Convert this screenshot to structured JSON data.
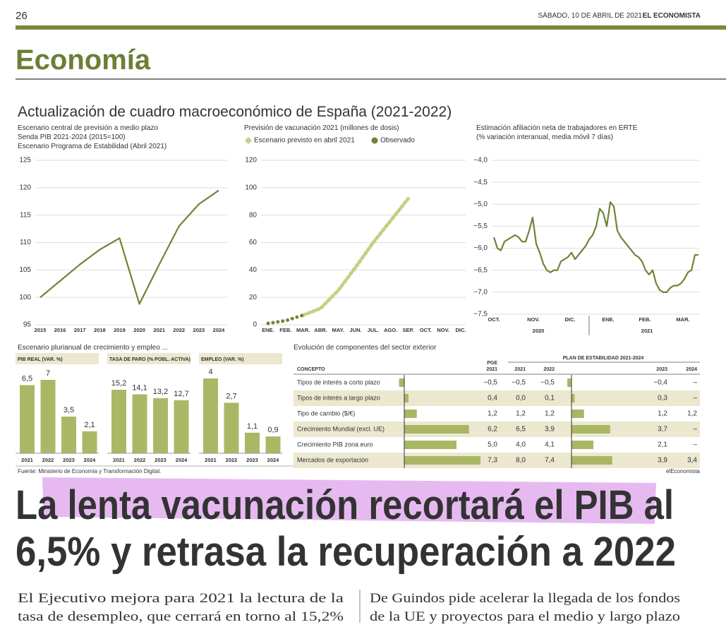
{
  "header": {
    "page": "26",
    "date": "SÁBADO, 10 DE ABRIL DE 2021",
    "paper": "EL ECONOMISTA",
    "section": "Economía"
  },
  "title": "Actualización de cuadro macroeconómico de España (2021-2022)",
  "chart_data": [
    {
      "type": "line",
      "title_lines": [
        "Escenario central de previsión a medio plazo",
        "Senda PIB 2021-2024 (2015=100)",
        "Escenario Programa de Estabilidad (Abril 2021)"
      ],
      "categories": [
        "2015",
        "2016",
        "2017",
        "2018",
        "2019",
        "2020",
        "2021",
        "2022",
        "2023",
        "2024"
      ],
      "values": [
        100,
        103,
        106,
        108.7,
        110.8,
        98.8,
        106,
        113,
        117,
        119.5
      ],
      "color": "#6f8436",
      "ylim": [
        95,
        125
      ],
      "yticks": [
        95,
        100,
        105,
        110,
        115,
        120,
        125
      ],
      "grid": true
    },
    {
      "type": "line",
      "title_lines": [
        "Previsión de vacunación 2021 (millones de dosis)"
      ],
      "categories": [
        "ENE.",
        "FEB.",
        "MAR.",
        "ABR.",
        "MAY.",
        "JUN.",
        "JUL.",
        "AGO.",
        "SEP.",
        "OCT.",
        "NOV.",
        "DIC."
      ],
      "series": [
        {
          "name": "Escenario previsto en abril 2021",
          "color": "#c3cf85",
          "values": [
            null,
            null,
            7,
            12,
            25,
            42,
            60,
            76,
            92,
            null,
            null,
            null
          ]
        },
        {
          "name": "Observado",
          "color": "#6f8436",
          "values": [
            1,
            3,
            7,
            null,
            null,
            null,
            null,
            null,
            null,
            null,
            null,
            null
          ]
        }
      ],
      "ylim": [
        0,
        120
      ],
      "yticks": [
        0,
        20,
        40,
        60,
        80,
        100,
        120
      ],
      "grid": true
    },
    {
      "type": "line",
      "title_lines": [
        "Estimación afiliación neta de trabajadores en ERTE",
        "(% variación interanual, media móvil 7 días)"
      ],
      "values": [
        -5.75,
        -6.0,
        -6.05,
        -5.85,
        -5.8,
        -5.75,
        -5.7,
        -5.75,
        -5.85,
        -5.85,
        -5.6,
        -5.3,
        -5.9,
        -6.1,
        -6.35,
        -6.5,
        -6.55,
        -6.5,
        -6.5,
        -6.3,
        -6.25,
        -6.2,
        -6.1,
        -6.25,
        -6.15,
        -6.05,
        -5.95,
        -5.8,
        -5.7,
        -5.5,
        -5.1,
        -5.2,
        -5.5,
        -4.95,
        -5.05,
        -5.6,
        -5.75,
        -5.85,
        -5.95,
        -6.05,
        -6.15,
        -6.2,
        -6.3,
        -6.5,
        -6.6,
        -6.5,
        -6.8,
        -6.95,
        -7.0,
        -7.0,
        -6.9,
        -6.85,
        -6.85,
        -6.8,
        -6.7,
        -6.55,
        -6.5,
        -6.15,
        -6.15
      ],
      "month_labels": [
        "OCT.",
        "NOV.",
        "DIC.",
        "ENE.",
        "FEB.",
        "MAR."
      ],
      "year_labels": [
        "2020",
        "2021"
      ],
      "color": "#6f8436",
      "ylim": [
        -7.5,
        -4.0
      ],
      "yticks": [
        {
          "value": -4.0,
          "label": "−4,0"
        },
        {
          "value": -4.5,
          "label": "−4,5"
        },
        {
          "value": -5.0,
          "label": "−5,0"
        },
        {
          "value": -5.5,
          "label": "−5,5"
        },
        {
          "value": -6.0,
          "label": "−6,0"
        },
        {
          "value": -6.5,
          "label": "−6,5"
        },
        {
          "value": -7.0,
          "label": "−7,0"
        },
        {
          "value": -7.5,
          "label": "−7,5"
        }
      ],
      "grid": true
    },
    {
      "type": "bar",
      "title": "PIB REAL (VAR. %)",
      "categories": [
        "2021",
        "2022",
        "2023",
        "2024"
      ],
      "values": [
        6.5,
        7,
        3.5,
        2.1
      ],
      "value_labels": [
        "6,5",
        "7",
        "3,5",
        "2,1"
      ],
      "color": "#aab866"
    },
    {
      "type": "bar",
      "title": "TASA DE PARO (% POBL. ACTIVA)",
      "categories": [
        "2021",
        "2022",
        "2023",
        "2024"
      ],
      "values": [
        15.2,
        14.1,
        13.2,
        12.7
      ],
      "value_labels": [
        "15,2",
        "14,1",
        "13,2",
        "12,7"
      ],
      "color": "#aab866"
    },
    {
      "type": "bar",
      "title": "EMPLEO (VAR. %)",
      "categories": [
        "2021",
        "2022",
        "2023",
        "2024"
      ],
      "values": [
        4,
        2.7,
        1.1,
        0.9
      ],
      "value_labels": [
        "4",
        "2,7",
        "1,1",
        "0,9"
      ],
      "color": "#aab866"
    }
  ],
  "bar_group_title": "Escenario plurianual de crecimiento y empleo ...",
  "table": {
    "title": "Evolución de componentes del sector exterior",
    "group_header": "PLAN DE ESTABILIDAD 2021-2024",
    "pge_label": "PGE",
    "columns": [
      "CONCEPTO",
      "2021",
      "2021",
      "2022",
      "2023",
      "2024"
    ],
    "bar_color": "#a9b765",
    "rows": [
      {
        "label": "Tipos de interés a corto plazo",
        "values": [
          -0.5,
          -0.5,
          -0.5,
          -0.4,
          null
        ],
        "value_labels": [
          "−0,5",
          "−0,5",
          "−0,5",
          "−0,4",
          "–"
        ]
      },
      {
        "label": "Tipos de interés a largo plazo",
        "values": [
          0.4,
          0.0,
          0.1,
          0.3,
          null
        ],
        "value_labels": [
          "0,4",
          "0,0",
          "0,1",
          "0,3",
          "–"
        ]
      },
      {
        "label": "Tipo de cambio ($/€)",
        "values": [
          1.2,
          1.2,
          1.2,
          1.2,
          1.2
        ],
        "value_labels": [
          "1,2",
          "1,2",
          "1,2",
          "1,2",
          "1,2"
        ]
      },
      {
        "label": "Crecimiento Mundial (excl. UE)",
        "values": [
          6.2,
          6.5,
          3.9,
          3.7,
          null
        ],
        "value_labels": [
          "6,2",
          "6,5",
          "3,9",
          "3,7",
          "–"
        ]
      },
      {
        "label": "Crecimiento PIB zona euro",
        "values": [
          5.0,
          4.0,
          4.1,
          2.1,
          null
        ],
        "value_labels": [
          "5,0",
          "4,0",
          "4,1",
          "2,1",
          "–"
        ]
      },
      {
        "label": "Mercados de exportación",
        "values": [
          7.3,
          8.0,
          7.4,
          3.9,
          3.4
        ],
        "value_labels": [
          "7,3",
          "8,0",
          "7,4",
          "3,9",
          "3,4"
        ]
      }
    ]
  },
  "footer": {
    "source": "Fuente: Ministerio de Economía y Transformación Digital.",
    "brand": "elEconomista"
  },
  "headline": [
    "La lenta vacunación recortará el PIB al",
    "6,5% y retrasa la recuperación a 2022"
  ],
  "subheads": [
    [
      "El Ejecutivo mejora para 2021 la lectura de la",
      "tasa de desempleo, que cerrará en torno al 15,2%"
    ],
    [
      "De Guindos pide acelerar la llegada de los fondos",
      "de la UE y proyectos para el medio y largo plazo"
    ]
  ]
}
